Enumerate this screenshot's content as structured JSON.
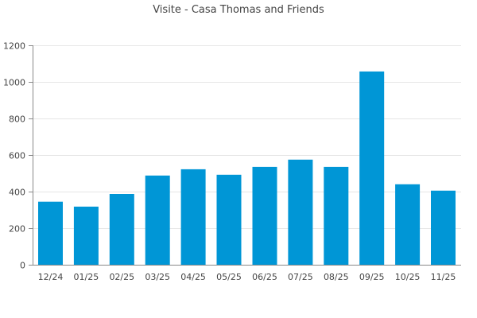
{
  "chart_data": {
    "type": "bar",
    "title": "Visite - Casa Thomas and Friends",
    "xlabel": "",
    "ylabel": "",
    "categories": [
      "12/24",
      "01/25",
      "02/25",
      "03/25",
      "04/25",
      "05/25",
      "06/25",
      "07/25",
      "08/25",
      "09/25",
      "10/25",
      "11/25"
    ],
    "values": [
      345,
      318,
      387,
      488,
      522,
      492,
      535,
      575,
      535,
      1057,
      440,
      405
    ],
    "ylim": [
      0,
      1200
    ],
    "yticks": [
      0,
      200,
      400,
      600,
      800,
      1000,
      1200
    ],
    "bar_color": "#0096d6",
    "grid": true,
    "legend": "none"
  }
}
